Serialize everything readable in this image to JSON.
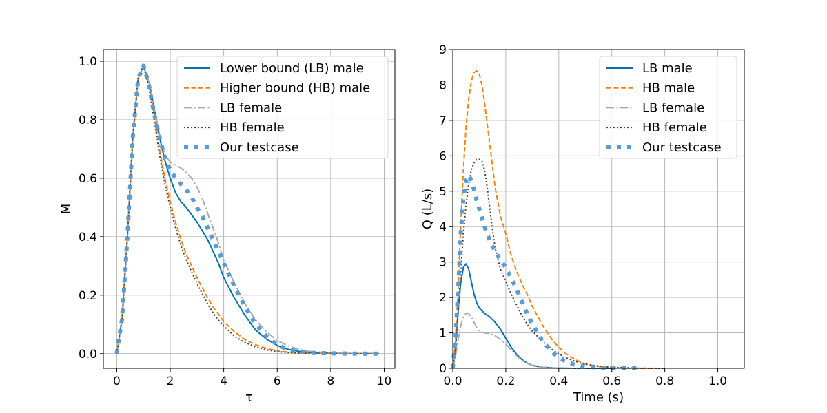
{
  "chart_data": [
    {
      "type": "line",
      "xlabel": "τ",
      "ylabel": "M",
      "xlim": [
        -0.5,
        10.4
      ],
      "ylim": [
        -0.05,
        1.04
      ],
      "xticks": [
        "0",
        "2",
        "4",
        "6",
        "8",
        "10"
      ],
      "xtick_values": [
        0,
        2,
        4,
        6,
        8,
        10
      ],
      "yticks": [
        "0.0",
        "0.2",
        "0.4",
        "0.6",
        "0.8",
        "1.0"
      ],
      "ytick_values": [
        0,
        0.2,
        0.4,
        0.6,
        0.8,
        1.0
      ],
      "grid": true,
      "legend_position": "upper right",
      "series": [
        {
          "name": "Lower bound (LB) male",
          "style": "solid",
          "color": "#0072b2",
          "x": [
            0,
            0.2,
            0.4,
            0.6,
            0.8,
            1.0,
            1.2,
            1.4,
            1.6,
            1.8,
            2.0,
            2.2,
            2.4,
            2.6,
            2.8,
            3.0,
            3.2,
            3.4,
            3.6,
            3.8,
            4.0,
            4.4,
            4.8,
            5.2,
            5.6,
            6.0,
            6.4,
            6.8,
            7.2,
            8.0,
            9.0,
            9.8
          ],
          "values": [
            0.0,
            0.12,
            0.4,
            0.74,
            0.94,
            0.985,
            0.93,
            0.84,
            0.74,
            0.66,
            0.6,
            0.55,
            0.52,
            0.5,
            0.475,
            0.45,
            0.42,
            0.39,
            0.35,
            0.31,
            0.26,
            0.19,
            0.13,
            0.08,
            0.05,
            0.028,
            0.015,
            0.008,
            0.004,
            0.001,
            0.0,
            0.0
          ]
        },
        {
          "name": "Higher bound (HB) male",
          "style": "dashed",
          "color": "#ff7f0e",
          "x": [
            0,
            0.2,
            0.4,
            0.6,
            0.8,
            1.0,
            1.2,
            1.4,
            1.6,
            1.8,
            2.0,
            2.2,
            2.4,
            2.6,
            2.8,
            3.0,
            3.2,
            3.4,
            3.6,
            3.8,
            4.0,
            4.4,
            4.8,
            5.2,
            5.6,
            6.0,
            6.4,
            6.8,
            7.2,
            8.0,
            9.0,
            9.8
          ],
          "values": [
            0.0,
            0.12,
            0.4,
            0.74,
            0.94,
            0.985,
            0.92,
            0.82,
            0.7,
            0.6,
            0.52,
            0.45,
            0.39,
            0.34,
            0.3,
            0.26,
            0.225,
            0.19,
            0.16,
            0.135,
            0.11,
            0.075,
            0.048,
            0.03,
            0.018,
            0.01,
            0.005,
            0.003,
            0.001,
            0.0,
            0.0,
            0.0
          ]
        },
        {
          "name": "LB female",
          "style": "dashdot",
          "color": "#a9a9a9",
          "x": [
            0,
            0.2,
            0.4,
            0.6,
            0.8,
            1.0,
            1.2,
            1.4,
            1.6,
            1.8,
            2.0,
            2.2,
            2.4,
            2.6,
            2.8,
            3.0,
            3.2,
            3.4,
            3.6,
            3.8,
            4.0,
            4.4,
            4.8,
            5.2,
            5.6,
            6.0,
            6.4,
            6.8,
            7.2,
            8.0,
            9.0,
            9.8
          ],
          "values": [
            0.0,
            0.12,
            0.4,
            0.74,
            0.94,
            0.985,
            0.93,
            0.84,
            0.75,
            0.68,
            0.655,
            0.645,
            0.635,
            0.62,
            0.6,
            0.57,
            0.53,
            0.48,
            0.43,
            0.38,
            0.32,
            0.24,
            0.17,
            0.115,
            0.075,
            0.045,
            0.027,
            0.015,
            0.008,
            0.002,
            0.0,
            0.0
          ]
        },
        {
          "name": "HB female",
          "style": "dotted",
          "color": "#444444",
          "x": [
            0,
            0.2,
            0.4,
            0.6,
            0.8,
            1.0,
            1.2,
            1.4,
            1.6,
            1.8,
            2.0,
            2.2,
            2.4,
            2.6,
            2.8,
            3.0,
            3.2,
            3.4,
            3.6,
            3.8,
            4.0,
            4.4,
            4.8,
            5.2,
            5.6,
            6.0,
            6.4,
            6.8,
            7.2,
            8.0,
            9.0,
            9.8
          ],
          "values": [
            0.0,
            0.12,
            0.4,
            0.74,
            0.94,
            0.985,
            0.91,
            0.8,
            0.68,
            0.58,
            0.5,
            0.43,
            0.37,
            0.32,
            0.28,
            0.24,
            0.205,
            0.17,
            0.14,
            0.115,
            0.095,
            0.06,
            0.038,
            0.023,
            0.013,
            0.007,
            0.004,
            0.002,
            0.001,
            0.0,
            0.0,
            0.0
          ]
        },
        {
          "name": "Our testcase",
          "style": "thick-dotted",
          "color": "#5a9bd5",
          "x": [
            0,
            0.2,
            0.4,
            0.6,
            0.8,
            1.0,
            1.2,
            1.4,
            1.6,
            1.8,
            2.0,
            2.2,
            2.4,
            2.6,
            2.8,
            3.0,
            3.2,
            3.4,
            3.6,
            3.8,
            4.0,
            4.4,
            4.8,
            5.2,
            5.6,
            6.0,
            6.4,
            6.8,
            7.2,
            8.0,
            9.0,
            9.8
          ],
          "values": [
            0.0,
            0.12,
            0.4,
            0.74,
            0.94,
            0.985,
            0.92,
            0.82,
            0.74,
            0.67,
            0.63,
            0.6,
            0.58,
            0.56,
            0.535,
            0.5,
            0.47,
            0.43,
            0.39,
            0.35,
            0.31,
            0.23,
            0.16,
            0.1,
            0.06,
            0.03,
            0.015,
            0.007,
            0.003,
            0.001,
            0.0,
            0.0
          ]
        }
      ]
    },
    {
      "type": "line",
      "xlabel": "Time (s)",
      "ylabel": "Q (L/s)",
      "xlim": [
        0,
        1.1
      ],
      "ylim": [
        0,
        9
      ],
      "xticks": [
        "0.0",
        "0.2",
        "0.4",
        "0.6",
        "0.8",
        "1.0"
      ],
      "xtick_values": [
        0,
        0.2,
        0.4,
        0.6,
        0.8,
        1.0
      ],
      "yticks": [
        "0",
        "1",
        "2",
        "3",
        "4",
        "5",
        "6",
        "7",
        "8",
        "9"
      ],
      "ytick_values": [
        0,
        1,
        2,
        3,
        4,
        5,
        6,
        7,
        8,
        9
      ],
      "grid": true,
      "legend_position": "upper right",
      "series": [
        {
          "name": "LB male",
          "style": "solid",
          "color": "#0072b2",
          "x": [
            0,
            0.01,
            0.02,
            0.03,
            0.04,
            0.05,
            0.06,
            0.07,
            0.08,
            0.09,
            0.1,
            0.12,
            0.14,
            0.16,
            0.18,
            0.2,
            0.22,
            0.24,
            0.26,
            0.28,
            0.3,
            0.34,
            0.38,
            0.42,
            0.46,
            0.5,
            0.55,
            0.6
          ],
          "values": [
            0.0,
            0.6,
            1.6,
            2.4,
            2.85,
            2.95,
            2.8,
            2.45,
            2.1,
            1.85,
            1.7,
            1.55,
            1.45,
            1.3,
            1.1,
            0.85,
            0.6,
            0.4,
            0.25,
            0.15,
            0.08,
            0.03,
            0.01,
            0.003,
            0.0,
            0.0,
            0.0,
            0.0
          ]
        },
        {
          "name": "HB male",
          "style": "dashed",
          "color": "#ff7f0e",
          "x": [
            0,
            0.01,
            0.02,
            0.03,
            0.04,
            0.05,
            0.06,
            0.07,
            0.08,
            0.09,
            0.1,
            0.11,
            0.12,
            0.14,
            0.16,
            0.18,
            0.2,
            0.22,
            0.24,
            0.26,
            0.28,
            0.3,
            0.34,
            0.38,
            0.42,
            0.46,
            0.5,
            0.55,
            0.6,
            0.65,
            0.7,
            0.8
          ],
          "values": [
            0.0,
            0.8,
            2.2,
            4.0,
            5.6,
            6.8,
            7.6,
            8.1,
            8.35,
            8.4,
            8.3,
            8.0,
            7.5,
            6.3,
            5.1,
            4.3,
            3.8,
            3.2,
            2.75,
            2.4,
            2.1,
            1.75,
            1.2,
            0.75,
            0.45,
            0.25,
            0.12,
            0.05,
            0.02,
            0.005,
            0.0,
            0.0
          ]
        },
        {
          "name": "LB female",
          "style": "dashdot",
          "color": "#a9a9a9",
          "x": [
            0,
            0.01,
            0.02,
            0.03,
            0.04,
            0.05,
            0.06,
            0.07,
            0.08,
            0.09,
            0.1,
            0.12,
            0.14,
            0.16,
            0.18,
            0.2,
            0.22,
            0.24,
            0.26,
            0.28,
            0.3,
            0.34,
            0.38,
            0.42,
            0.46,
            0.5
          ],
          "values": [
            0.0,
            0.3,
            0.8,
            1.2,
            1.45,
            1.55,
            1.55,
            1.45,
            1.3,
            1.15,
            1.05,
            1.0,
            0.98,
            0.92,
            0.82,
            0.68,
            0.52,
            0.36,
            0.23,
            0.14,
            0.08,
            0.03,
            0.01,
            0.003,
            0.0,
            0.0
          ]
        },
        {
          "name": "HB female",
          "style": "dotted",
          "color": "#444444",
          "x": [
            0,
            0.01,
            0.02,
            0.03,
            0.04,
            0.05,
            0.06,
            0.07,
            0.08,
            0.09,
            0.1,
            0.11,
            0.12,
            0.13,
            0.14,
            0.15,
            0.16,
            0.18,
            0.2,
            0.22,
            0.24,
            0.26,
            0.28,
            0.3,
            0.34,
            0.38,
            0.42,
            0.46,
            0.5,
            0.55,
            0.6,
            0.65,
            0.7,
            0.8
          ],
          "values": [
            0.0,
            0.5,
            1.5,
            2.7,
            3.8,
            4.6,
            5.2,
            5.6,
            5.8,
            5.9,
            5.9,
            5.85,
            5.6,
            5.1,
            4.5,
            3.9,
            3.4,
            2.8,
            2.45,
            2.1,
            1.8,
            1.5,
            1.25,
            1.05,
            0.75,
            0.5,
            0.32,
            0.2,
            0.12,
            0.06,
            0.03,
            0.015,
            0.005,
            0.0
          ]
        },
        {
          "name": "Our testcase",
          "style": "thick-dotted",
          "color": "#5a9bd5",
          "x": [
            0,
            0.01,
            0.02,
            0.03,
            0.04,
            0.05,
            0.06,
            0.07,
            0.08,
            0.09,
            0.1,
            0.11,
            0.12,
            0.14,
            0.16,
            0.18,
            0.2,
            0.22,
            0.24,
            0.26,
            0.28,
            0.3,
            0.34,
            0.38,
            0.42,
            0.46,
            0.5,
            0.55,
            0.6,
            0.65,
            0.7
          ],
          "values": [
            0.0,
            0.8,
            2.2,
            3.8,
            4.8,
            5.3,
            5.45,
            5.3,
            5.05,
            4.75,
            4.5,
            4.25,
            4.0,
            3.6,
            3.3,
            3.05,
            2.85,
            2.55,
            2.25,
            1.9,
            1.55,
            1.25,
            0.75,
            0.42,
            0.22,
            0.1,
            0.05,
            0.02,
            0.01,
            0.005,
            0.0
          ]
        }
      ]
    }
  ]
}
